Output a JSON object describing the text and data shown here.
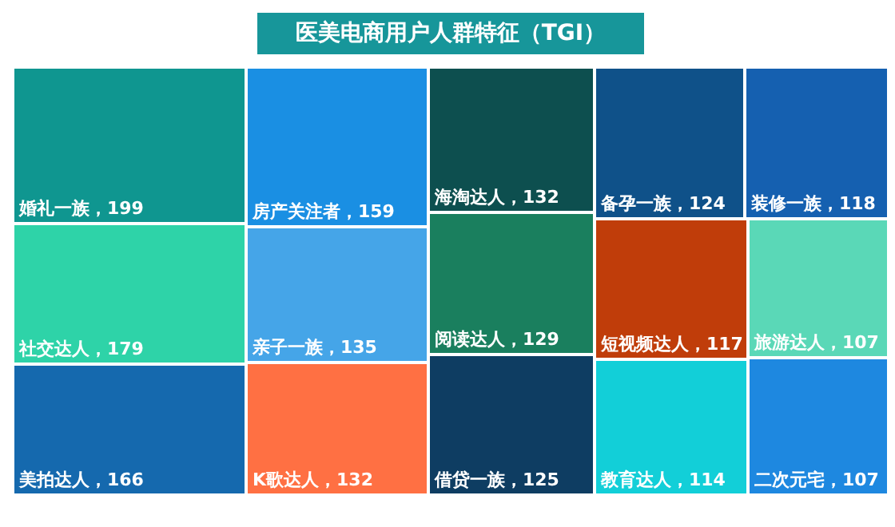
{
  "chart_data": {
    "type": "other",
    "title": "医美电商用户人群特征（TGI）",
    "value_labels": [
      "，199",
      "，179",
      "，166",
      "，159",
      "，135",
      "，132",
      "，132",
      "，129",
      "，125",
      "，124",
      "，118",
      "，117",
      "，114",
      "，107",
      "，107"
    ],
    "categories": [
      "婚礼一族",
      "社交达人",
      "美拍达人",
      "房产关注者",
      "亲子一族",
      "K歌达人",
      "海淘达人",
      "阅读达人",
      "借贷一族",
      "备孕一族",
      "装修一族",
      "短视频达人",
      "教育达人",
      "旅游达人",
      "二次元宅"
    ],
    "values": [
      199,
      179,
      166,
      159,
      135,
      132,
      132,
      129,
      125,
      124,
      118,
      117,
      114,
      107,
      107
    ],
    "colors": [
      "#0f9690",
      "#2ed3a8",
      "#1569ae",
      "#1a8fe3",
      "#45a5e8",
      "#ff7043",
      "#0d4f4f",
      "#1a7f5e",
      "#0e3d62",
      "#0f5189",
      "#1560b0",
      "#c03d0a",
      "#12cfd8",
      "#5ad8b7",
      "#1e88e0"
    ]
  }
}
